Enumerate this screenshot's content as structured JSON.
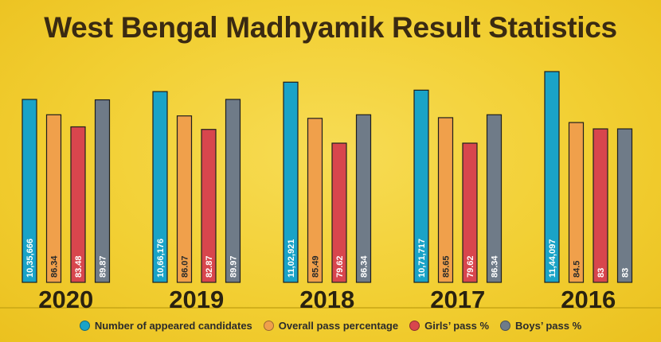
{
  "title": "West Bengal Madhyamik Result Statistics",
  "chart_data": {
    "type": "bar",
    "groups": [
      {
        "year": "2020",
        "values": [
          {
            "label": "10,35,666",
            "value": 1035666
          },
          {
            "label": "86.34",
            "value": 86.34
          },
          {
            "label": "83.48",
            "value": 83.48
          },
          {
            "label": "89.87",
            "value": 89.87
          }
        ]
      },
      {
        "year": "2019",
        "values": [
          {
            "label": "10,66,176",
            "value": 1066176
          },
          {
            "label": "86.07",
            "value": 86.07
          },
          {
            "label": "82.87",
            "value": 82.87
          },
          {
            "label": "89.97",
            "value": 89.97
          }
        ]
      },
      {
        "year": "2018",
        "values": [
          {
            "label": "11,02,921",
            "value": 1102921
          },
          {
            "label": "85.49",
            "value": 85.49
          },
          {
            "label": "79.62",
            "value": 79.62
          },
          {
            "label": "86.34",
            "value": 86.34
          }
        ]
      },
      {
        "year": "2017",
        "values": [
          {
            "label": "10,71,717",
            "value": 1071717
          },
          {
            "label": "85.65",
            "value": 85.65
          },
          {
            "label": "79.62",
            "value": 79.62
          },
          {
            "label": "86.34",
            "value": 86.34
          }
        ]
      },
      {
        "year": "2016",
        "values": [
          {
            "label": "11,44,097",
            "value": 1144097
          },
          {
            "label": "84.5",
            "value": 84.5
          },
          {
            "label": "83",
            "value": 83
          },
          {
            "label": "83",
            "value": 83
          }
        ]
      }
    ],
    "series": [
      {
        "name": "Number of appeared candidates",
        "color": "#1aa3c7"
      },
      {
        "name": "Overall pass percentage",
        "color": "#f0a04b"
      },
      {
        "name": "Girls’ pass %",
        "color": "#d8464d"
      },
      {
        "name": "Boys’ pass %",
        "color": "#6f7b88"
      }
    ],
    "legend_position": "bottom",
    "grid": false
  }
}
